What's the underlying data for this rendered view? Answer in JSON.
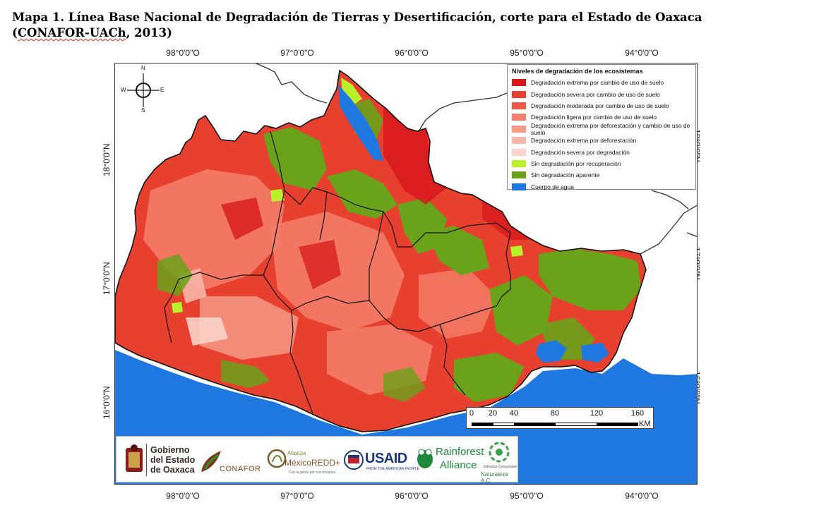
{
  "title": {
    "line1": "Mapa 1. Línea Base Nacional de Degradación de Tierras y Desertificación, corte para el Estado de Oaxaca",
    "line2_pre": "(",
    "line2_squig": "CONAFOR-UACh",
    "line2_post": ", 2013)"
  },
  "graticule": {
    "longitudes": [
      "98°0'0\"O",
      "97°0'0\"O",
      "96°0'0\"O",
      "95°0'0\"O",
      "94°0'0\"O"
    ],
    "latitudes": [
      "18°0'0\"N",
      "17°0'0\"N",
      "16°0'0\"N"
    ]
  },
  "compass": {
    "n": "N",
    "s": "S",
    "e": "E",
    "w": "W"
  },
  "legend": {
    "title": "Niveles de degradación de los ecosistemas",
    "items": [
      {
        "label": "Degradación extrema por cambio de uso de suelo",
        "color": "#d7191c"
      },
      {
        "label": "Degradación severa por cambio de uso de suelo",
        "color": "#e8402e"
      },
      {
        "label": "Degradación moderada por cambio de uso de suelo",
        "color": "#ee5a45"
      },
      {
        "label": "Degradación ligera por cambio de uso de suelo",
        "color": "#f3806a"
      },
      {
        "label": "Degradación extrema por deforestación y cambio de uso de suelo",
        "color": "#f59a86"
      },
      {
        "label": "Degradación extrema por deforestación",
        "color": "#f8b6a8"
      },
      {
        "label": "Degradación severa por degradación",
        "color": "#fbd3ca"
      },
      {
        "label": "Sin degradación por recuperación",
        "color": "#b8f02a"
      },
      {
        "label": "Sin degradación aparente",
        "color": "#6aa319"
      },
      {
        "label": "Cuerpo de agua",
        "color": "#1f78e0"
      }
    ]
  },
  "scale": {
    "ticks": [
      "0",
      "20",
      "40",
      "80",
      "120",
      "160"
    ],
    "unit": "KM"
  },
  "logos": {
    "gobierno": [
      "Gobierno",
      "del Estado",
      "de Oaxaca"
    ],
    "conafor": "CONAFOR",
    "mexico_redd_a": "Alianza",
    "mexico_redd_b": "MéxicoREDD+",
    "mexico_redd_c": "Con la gente por sus bosques",
    "usaid": "USAID",
    "usaid_sub": "FROM THE AMERICAN PEOPLE",
    "rainforest_1": "Rainforest",
    "rainforest_2": "Alliance",
    "naturaleza_1": "Individuo-Comunidad",
    "naturaleza_2": "Naturaleza A.C."
  },
  "colors": {
    "ocean": "#1f78e0",
    "state_base": "#e8402e",
    "green": "#6aa319",
    "salmon": "#f3806a",
    "boundary": "#1a1a1a"
  }
}
